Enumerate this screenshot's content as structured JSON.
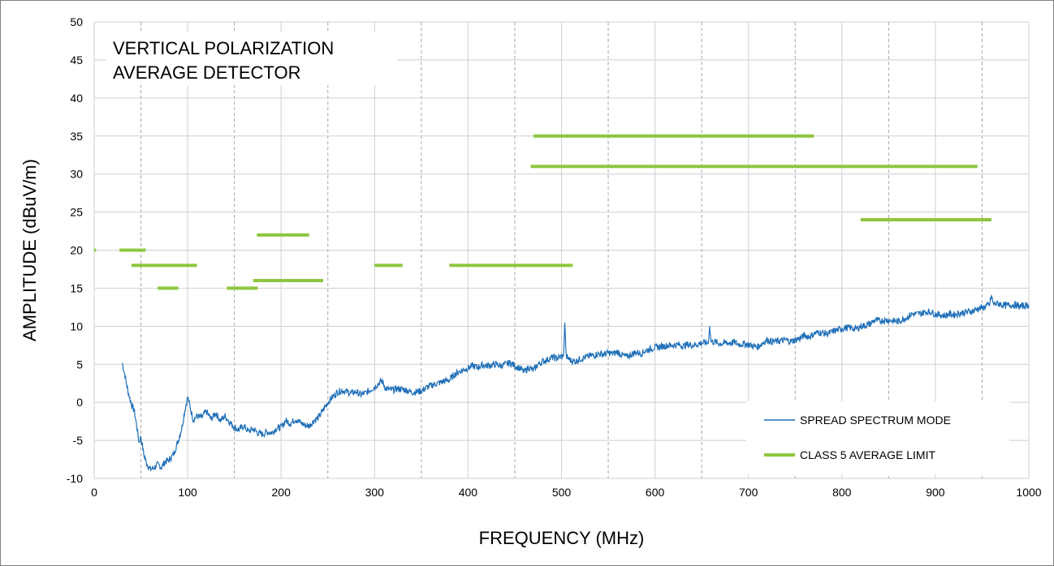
{
  "chart_data": {
    "type": "line",
    "title_lines": [
      "VERTICAL POLARIZATION",
      "AVERAGE DETECTOR"
    ],
    "xlabel": "FREQUENCY (MHz)",
    "ylabel": "AMPLITUDE (dBuV/m)",
    "xlim": [
      0,
      1000
    ],
    "ylim": [
      -10,
      50
    ],
    "x_ticks": [
      0,
      100,
      200,
      300,
      400,
      500,
      600,
      700,
      800,
      900,
      1000
    ],
    "y_ticks": [
      -10,
      -5,
      0,
      5,
      10,
      15,
      20,
      25,
      30,
      35,
      40,
      45,
      50
    ],
    "grid": {
      "major_x": true,
      "major_y": true,
      "minor_x_dashed": true,
      "minor_x_step": 50
    },
    "legend_position": "bottom-right",
    "series": [
      {
        "name": "SPREAD SPECTRUM MODE",
        "color": "#1f6fb8",
        "points": [
          [
            30,
            5.2
          ],
          [
            33,
            3.5
          ],
          [
            36,
            1.5
          ],
          [
            40,
            -0.3
          ],
          [
            43,
            -1.2
          ],
          [
            46,
            -3.5
          ],
          [
            48,
            -5.3
          ],
          [
            50,
            -4.5
          ],
          [
            53,
            -6.8
          ],
          [
            56,
            -8.0
          ],
          [
            60,
            -8.8
          ],
          [
            64,
            -8.6
          ],
          [
            68,
            -8.2
          ],
          [
            72,
            -8.5
          ],
          [
            76,
            -7.8
          ],
          [
            80,
            -7.6
          ],
          [
            85,
            -6.8
          ],
          [
            90,
            -5.0
          ],
          [
            94,
            -3.2
          ],
          [
            97,
            -1.0
          ],
          [
            100,
            0.7
          ],
          [
            103,
            -0.8
          ],
          [
            106,
            -2.3
          ],
          [
            110,
            -1.8
          ],
          [
            115,
            -2.0
          ],
          [
            120,
            -1.2
          ],
          [
            125,
            -2.2
          ],
          [
            130,
            -1.4
          ],
          [
            135,
            -2.4
          ],
          [
            140,
            -1.8
          ],
          [
            145,
            -2.6
          ],
          [
            150,
            -3.3
          ],
          [
            155,
            -3.6
          ],
          [
            160,
            -3.1
          ],
          [
            165,
            -3.8
          ],
          [
            170,
            -3.5
          ],
          [
            175,
            -4.0
          ],
          [
            180,
            -4.2
          ],
          [
            185,
            -3.9
          ],
          [
            190,
            -4.0
          ],
          [
            195,
            -3.4
          ],
          [
            200,
            -3.3
          ],
          [
            205,
            -2.4
          ],
          [
            210,
            -2.8
          ],
          [
            215,
            -2.2
          ],
          [
            220,
            -2.6
          ],
          [
            225,
            -3.0
          ],
          [
            230,
            -3.1
          ],
          [
            235,
            -2.4
          ],
          [
            240,
            -2.0
          ],
          [
            245,
            -1.0
          ],
          [
            250,
            0.0
          ],
          [
            255,
            0.7
          ],
          [
            260,
            1.3
          ],
          [
            265,
            1.6
          ],
          [
            270,
            1.4
          ],
          [
            275,
            1.2
          ],
          [
            280,
            1.4
          ],
          [
            285,
            1.0
          ],
          [
            290,
            1.2
          ],
          [
            295,
            1.6
          ],
          [
            300,
            2.0
          ],
          [
            305,
            2.6
          ],
          [
            308,
            2.8
          ],
          [
            312,
            1.8
          ],
          [
            318,
            1.6
          ],
          [
            325,
            1.8
          ],
          [
            330,
            1.7
          ],
          [
            335,
            1.6
          ],
          [
            340,
            1.3
          ],
          [
            345,
            1.4
          ],
          [
            350,
            1.5
          ],
          [
            355,
            1.9
          ],
          [
            360,
            2.2
          ],
          [
            365,
            2.4
          ],
          [
            370,
            2.6
          ],
          [
            375,
            2.8
          ],
          [
            380,
            2.9
          ],
          [
            385,
            3.6
          ],
          [
            390,
            4.0
          ],
          [
            395,
            4.3
          ],
          [
            400,
            4.5
          ],
          [
            405,
            4.8
          ],
          [
            410,
            4.6
          ],
          [
            415,
            4.9
          ],
          [
            420,
            4.8
          ],
          [
            425,
            4.9
          ],
          [
            430,
            5.0
          ],
          [
            435,
            4.8
          ],
          [
            440,
            5.0
          ],
          [
            445,
            5.2
          ],
          [
            450,
            4.8
          ],
          [
            455,
            4.5
          ],
          [
            460,
            4.0
          ],
          [
            465,
            4.6
          ],
          [
            470,
            4.2
          ],
          [
            475,
            5.0
          ],
          [
            480,
            5.4
          ],
          [
            485,
            5.6
          ],
          [
            490,
            5.9
          ],
          [
            495,
            5.8
          ],
          [
            500,
            6.0
          ],
          [
            502,
            6.0
          ],
          [
            503.5,
            10.5
          ],
          [
            505,
            6.0
          ],
          [
            510,
            5.5
          ],
          [
            515,
            5.4
          ],
          [
            520,
            5.7
          ],
          [
            525,
            5.9
          ],
          [
            530,
            6.1
          ],
          [
            535,
            6.2
          ],
          [
            540,
            6.4
          ],
          [
            545,
            6.3
          ],
          [
            550,
            6.5
          ],
          [
            555,
            6.4
          ],
          [
            560,
            6.6
          ],
          [
            565,
            6.2
          ],
          [
            570,
            6.0
          ],
          [
            575,
            6.3
          ],
          [
            580,
            6.6
          ],
          [
            585,
            6.4
          ],
          [
            590,
            6.8
          ],
          [
            595,
            7.0
          ],
          [
            600,
            7.2
          ],
          [
            605,
            7.3
          ],
          [
            610,
            7.4
          ],
          [
            615,
            7.5
          ],
          [
            620,
            7.5
          ],
          [
            625,
            7.6
          ],
          [
            630,
            7.4
          ],
          [
            635,
            7.6
          ],
          [
            640,
            7.5
          ],
          [
            645,
            7.6
          ],
          [
            650,
            7.8
          ],
          [
            655,
            7.8
          ],
          [
            657,
            7.8
          ],
          [
            658.5,
            10.0
          ],
          [
            660,
            8.0
          ],
          [
            665,
            7.9
          ],
          [
            670,
            7.7
          ],
          [
            675,
            7.8
          ],
          [
            680,
            7.8
          ],
          [
            685,
            7.9
          ],
          [
            690,
            7.6
          ],
          [
            695,
            7.7
          ],
          [
            700,
            7.6
          ],
          [
            705,
            7.4
          ],
          [
            710,
            7.3
          ],
          [
            715,
            7.8
          ],
          [
            720,
            8.2
          ],
          [
            725,
            8.0
          ],
          [
            730,
            8.0
          ],
          [
            735,
            8.1
          ],
          [
            740,
            8.2
          ],
          [
            745,
            8.0
          ],
          [
            750,
            8.2
          ],
          [
            755,
            8.4
          ],
          [
            760,
            8.8
          ],
          [
            765,
            8.6
          ],
          [
            770,
            9.0
          ],
          [
            775,
            9.2
          ],
          [
            780,
            9.1
          ],
          [
            785,
            9.0
          ],
          [
            790,
            9.3
          ],
          [
            795,
            9.5
          ],
          [
            800,
            9.7
          ],
          [
            805,
            9.8
          ],
          [
            810,
            9.8
          ],
          [
            815,
            9.6
          ],
          [
            820,
            10.0
          ],
          [
            825,
            10.1
          ],
          [
            830,
            10.3
          ],
          [
            835,
            10.8
          ],
          [
            840,
            10.7
          ],
          [
            845,
            10.8
          ],
          [
            850,
            10.8
          ],
          [
            855,
            10.7
          ],
          [
            860,
            10.6
          ],
          [
            865,
            10.9
          ],
          [
            870,
            11.2
          ],
          [
            875,
            11.6
          ],
          [
            880,
            11.6
          ],
          [
            885,
            11.7
          ],
          [
            890,
            11.9
          ],
          [
            895,
            11.9
          ],
          [
            900,
            11.6
          ],
          [
            905,
            11.5
          ],
          [
            910,
            11.4
          ],
          [
            915,
            11.6
          ],
          [
            920,
            11.5
          ],
          [
            925,
            11.7
          ],
          [
            930,
            11.8
          ],
          [
            935,
            11.9
          ],
          [
            940,
            12.0
          ],
          [
            945,
            12.3
          ],
          [
            950,
            12.4
          ],
          [
            955,
            12.7
          ],
          [
            958,
            12.8
          ],
          [
            960,
            14.0
          ],
          [
            962,
            12.9
          ],
          [
            965,
            13.0
          ],
          [
            970,
            12.9
          ],
          [
            975,
            12.7
          ],
          [
            980,
            12.8
          ],
          [
            985,
            12.8
          ],
          [
            990,
            12.6
          ],
          [
            995,
            12.7
          ],
          [
            1000,
            12.8
          ]
        ]
      },
      {
        "name": "CLASS 5 AVERAGE LIMIT",
        "color": "#8dc63f",
        "segments": [
          {
            "x": [
              0,
              2
            ],
            "y": 20
          },
          {
            "x": [
              27,
              55
            ],
            "y": 20
          },
          {
            "x": [
              40,
              110
            ],
            "y": 18
          },
          {
            "x": [
              68,
              90
            ],
            "y": 15
          },
          {
            "x": [
              142,
              175
            ],
            "y": 15
          },
          {
            "x": [
              170,
              245
            ],
            "y": 16
          },
          {
            "x": [
              174,
              230
            ],
            "y": 22
          },
          {
            "x": [
              300,
              330
            ],
            "y": 18
          },
          {
            "x": [
              380,
              512
            ],
            "y": 18
          },
          {
            "x": [
              470,
              770
            ],
            "y": 35
          },
          {
            "x": [
              467,
              945
            ],
            "y": 31
          },
          {
            "x": [
              820,
              960
            ],
            "y": 24
          }
        ]
      }
    ]
  }
}
